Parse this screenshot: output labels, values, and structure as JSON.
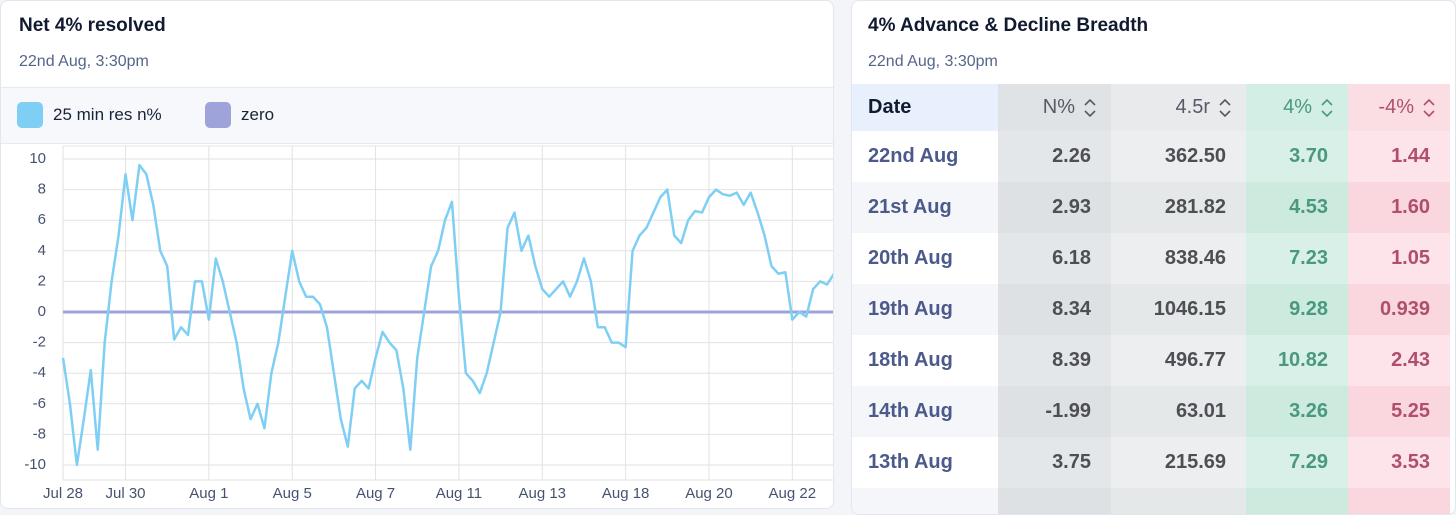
{
  "chart_data": {
    "type": "line",
    "title": "Net 4% resolved",
    "subtitle": "22nd Aug, 3:30pm",
    "categories": [
      "Jul 28",
      null,
      null,
      null,
      null,
      null,
      null,
      null,
      null,
      "Jul 30",
      null,
      null,
      null,
      null,
      null,
      null,
      null,
      null,
      null,
      null,
      null,
      "Aug 1",
      null,
      null,
      null,
      null,
      null,
      null,
      null,
      null,
      null,
      null,
      null,
      "Aug 5",
      null,
      null,
      null,
      null,
      null,
      null,
      null,
      null,
      null,
      null,
      null,
      "Aug 7",
      null,
      null,
      null,
      null,
      null,
      null,
      null,
      null,
      null,
      null,
      null,
      "Aug 11",
      null,
      null,
      null,
      null,
      null,
      null,
      null,
      null,
      null,
      null,
      null,
      "Aug 13",
      null,
      null,
      null,
      null,
      null,
      null,
      null,
      null,
      null,
      null,
      null,
      "Aug 18",
      null,
      null,
      null,
      null,
      null,
      null,
      null,
      null,
      null,
      null,
      null,
      "Aug 20",
      null,
      null,
      null,
      null,
      null,
      null,
      null,
      null,
      null,
      null,
      null,
      "Aug 22",
      null,
      null,
      null,
      null,
      null,
      null
    ],
    "series": [
      {
        "name": "25 min res n%",
        "color": "#7fcff4",
        "values": [
          -3,
          -6,
          -10,
          -7,
          -3.8,
          -9,
          -2,
          2,
          5,
          9,
          6,
          9.6,
          9,
          7,
          4,
          3,
          -1.8,
          -1,
          -1.5,
          2,
          2,
          -0.5,
          3.5,
          2,
          0,
          -2,
          -5,
          -7,
          -6,
          -7.6,
          -4,
          -2,
          1,
          4,
          2,
          1,
          1,
          0.5,
          -1,
          -4,
          -7,
          -8.8,
          -5,
          -4.5,
          -5,
          -3,
          -1.3,
          -2,
          -2.5,
          -5,
          -9,
          -3,
          0,
          3,
          4,
          6,
          7.2,
          1,
          -4,
          -4.5,
          -5.3,
          -4,
          -2,
          0,
          5.5,
          6.5,
          4,
          5,
          3,
          1.5,
          1,
          1.5,
          2,
          1,
          2,
          3.5,
          2,
          -1,
          -1,
          -2,
          -2,
          -2.3,
          4,
          5,
          5.5,
          6.5,
          7.5,
          8,
          5,
          4.5,
          6,
          6.6,
          6.5,
          7.5,
          8,
          7.7,
          7.6,
          7.8,
          7,
          7.8,
          6.5,
          5,
          3,
          2.5,
          2.6,
          -0.5,
          0,
          -0.3,
          1.5,
          2,
          1.8,
          2.5
        ]
      },
      {
        "name": "zero",
        "color": "#9ea3da",
        "values": [
          0,
          0,
          0,
          0,
          0,
          0,
          0,
          0,
          0,
          0,
          0,
          0,
          0,
          0,
          0,
          0,
          0,
          0,
          0,
          0,
          0,
          0,
          0,
          0,
          0,
          0,
          0,
          0,
          0,
          0,
          0,
          0,
          0,
          0,
          0,
          0,
          0,
          0,
          0,
          0,
          0,
          0,
          0,
          0,
          0,
          0,
          0,
          0,
          0,
          0,
          0,
          0,
          0,
          0,
          0,
          0,
          0,
          0,
          0,
          0,
          0,
          0,
          0,
          0,
          0,
          0,
          0,
          0,
          0,
          0,
          0,
          0,
          0,
          0,
          0,
          0,
          0,
          0,
          0,
          0,
          0,
          0,
          0,
          0,
          0,
          0,
          0,
          0,
          0,
          0,
          0,
          0,
          0,
          0,
          0,
          0,
          0,
          0,
          0,
          0,
          0,
          0,
          0,
          0,
          0,
          0,
          0,
          0,
          0,
          0,
          0,
          0
        ]
      }
    ],
    "ylim": [
      -10,
      10
    ],
    "yticks": [
      -10,
      -8,
      -6,
      -4,
      -2,
      0,
      2,
      4,
      6,
      8,
      10
    ],
    "grid": true,
    "legend": "top"
  },
  "table": {
    "title": "4% Advance & Decline Breadth",
    "subtitle": "22nd Aug, 3:30pm",
    "columns": [
      "Date",
      "N%",
      "4.5r",
      "4%",
      "-4%"
    ],
    "rows": [
      [
        "22nd Aug",
        "2.26",
        "362.50",
        "3.70",
        "1.44"
      ],
      [
        "21st Aug",
        "2.93",
        "281.82",
        "4.53",
        "1.60"
      ],
      [
        "20th Aug",
        "6.18",
        "838.46",
        "7.23",
        "1.05"
      ],
      [
        "19th Aug",
        "8.34",
        "1046.15",
        "9.28",
        "0.939"
      ],
      [
        "18th Aug",
        "8.39",
        "496.77",
        "10.82",
        "2.43"
      ],
      [
        "14th Aug",
        "-1.99",
        "63.01",
        "3.26",
        "5.25"
      ],
      [
        "13th Aug",
        "3.75",
        "215.69",
        "7.29",
        "3.53"
      ]
    ]
  }
}
